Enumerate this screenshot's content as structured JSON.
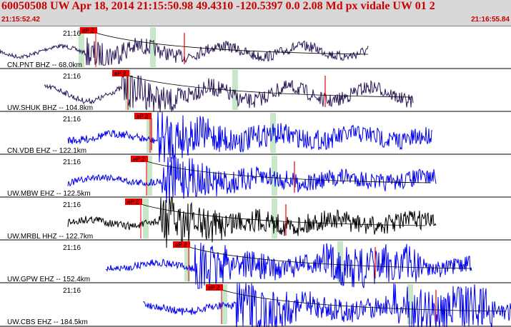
{
  "header": {
    "title": "60050508 UW Apr 18, 2014 21:15:50.98    49.4310 -120.5397  0.0 2.08 Md px vidale UW 01   2",
    "time_start": "21:15:52.42",
    "time_end": "21:16:55.84"
  },
  "colors": {
    "trace_dark": "#2e1a5a",
    "trace_blue": "#0000ee",
    "trace_black": "#000000",
    "pick": "#ee0000",
    "window": "#c8e6c8",
    "header_bg": "#d8d8d8",
    "title": "#cc0000"
  },
  "tracks": [
    {
      "time": "21:16",
      "label": "CN.PNT BHZ -- 68.0km",
      "pick": "eP 2",
      "color": "trace_dark"
    },
    {
      "time": "21:16",
      "label": "UW.SHUK BHZ -- 104.8km",
      "pick": "eP 2",
      "color": "trace_dark"
    },
    {
      "time": "21:16",
      "label": "CN.VDB EHZ -- 122.1km",
      "pick": "eP 2",
      "color": "trace_blue"
    },
    {
      "time": "21:16",
      "label": "UW.MBW EHZ -- 122.5km",
      "pick": "eP 2",
      "color": "trace_blue"
    },
    {
      "time": "21:16",
      "label": "UW.MRBL HHZ -- 122.7km",
      "pick": "eP 2",
      "color": "trace_black"
    },
    {
      "time": "21:16",
      "label": "UW.GPW EHZ -- 152.4km",
      "pick": "eP 2",
      "color": "trace_blue"
    },
    {
      "time": "21:16",
      "label": "UW.CBS EHZ -- 184.5km",
      "pick": "eP 2",
      "color": "trace_blue"
    }
  ]
}
